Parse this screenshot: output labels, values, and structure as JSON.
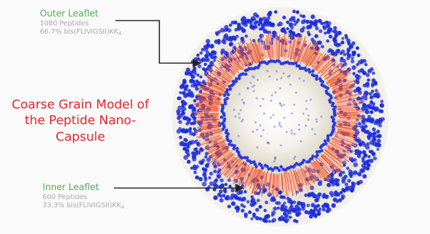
{
  "outer_leaflet": {
    "title": "Outer Leaflet",
    "line1": "1080 Peptides",
    "line2_prefix": "66.7% bis(FLIVIGSII)KK",
    "line2_sub": "4"
  },
  "inner_leaflet": {
    "title": "Inner Leaflet",
    "line1": "600 Peptides",
    "line2_prefix": "33.3% bis(FLIVIGSII)KK",
    "line2_sub": "4"
  },
  "model_title": {
    "line1": "Coarse Grain Model of",
    "line2": "the Peptide Nano-",
    "line3": "Capsule"
  },
  "colors": {
    "label_title": "#4cb050",
    "model_title": "#e8252a",
    "outer_beads": "#1f2fd9",
    "inner_beads": "#2a3ae0",
    "tails": "#f0522a",
    "tail_highlight": "#ffa08a",
    "core": "#d6d2c4"
  }
}
